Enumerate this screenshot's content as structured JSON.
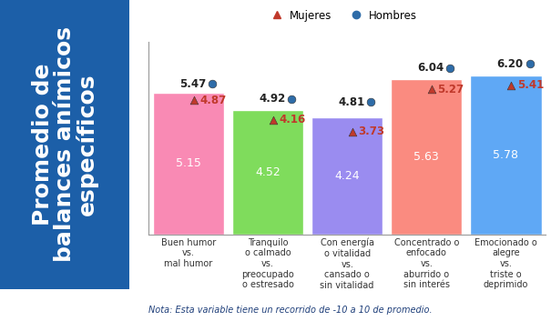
{
  "chart_data": {
    "type": "bar",
    "title": "Promedio de\nbalances anímicos\nespecíficos",
    "categories": [
      "Buen humor\nvs.\nmal humor",
      "Tranquilo\no calmado\nvs.\npreocupado\no estresado",
      "Con energía\no vitalidad\nvs.\ncansado o\nsin vitalidad",
      "Concentrado o\nenfocado\nvs.\naburrido o\nsin interés",
      "Emocionado o\nalegre\nvs.\ntriste o\ndeprimido"
    ],
    "values": [
      5.15,
      4.52,
      4.24,
      5.63,
      5.78
    ],
    "colors": [
      "#f98ab4",
      "#7fdc5c",
      "#9a8cf0",
      "#fa8b80",
      "#5fa8f5"
    ],
    "series": [
      {
        "name": "Mujeres",
        "type": "scatter",
        "marker": "triangle",
        "color": "#c0392b",
        "values": [
          4.87,
          4.16,
          3.73,
          5.27,
          5.41
        ]
      },
      {
        "name": "Hombres",
        "type": "scatter",
        "marker": "circle",
        "color": "#2e6ca8",
        "values": [
          5.47,
          4.92,
          4.81,
          6.04,
          6.2
        ],
        "value_labels": [
          "5.47",
          "4.92",
          "4.81",
          "6.04",
          "6.20"
        ]
      }
    ],
    "ylim": [
      0,
      7
    ],
    "data_labels": true,
    "tick_labels": "x",
    "legend": "upper center",
    "note": "Nota: Esta variable tiene un recorrido de -10 a 10 de promedio."
  }
}
